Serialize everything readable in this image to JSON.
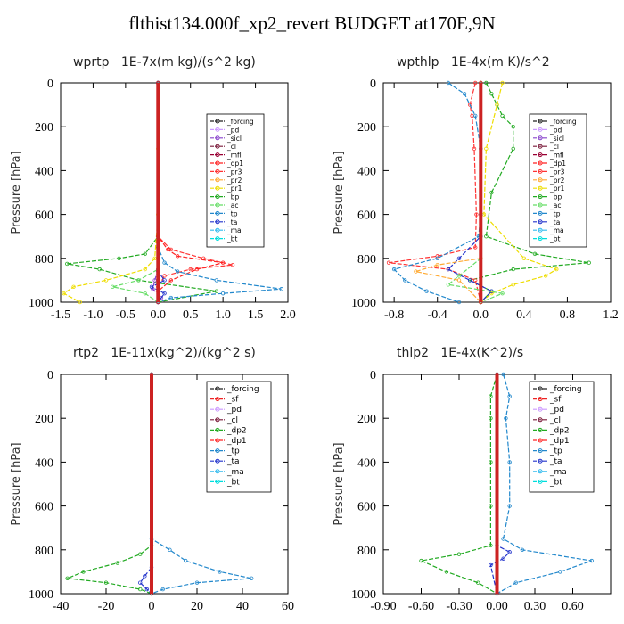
{
  "figure_title": "flthist134.000f_xp2_revert  BUDGET at170E,9N",
  "colors": {
    "_forcing": "#222222",
    "_pd": "#cc99ff",
    "_sicl": "#8844cc",
    "_cl": "#7a1a3a",
    "_mfl": "#990033",
    "_dp1": "#ff2222",
    "_pr3": "#ff3333",
    "_pr2": "#ffaa33",
    "_pr1": "#eedd00",
    "_bp": "#22aa22",
    "_ac": "#66dd66",
    "_tp": "#2288cc",
    "_ta": "#2233cc",
    "_ma": "#33bbee",
    "_bt": "#00dddd",
    "_sf": "#ee2222",
    "_dp2": "#22aa22"
  },
  "chart_data": [
    {
      "type": "line",
      "title": "wprtp   1E-7x(m kg)/(s^2 kg)",
      "ylabel": "Pressure [hPa]",
      "xlim": [
        -1.5,
        2.0
      ],
      "ylim": [
        1000,
        0
      ],
      "xticks": [
        "-1.5",
        "-1.0",
        "-0.5",
        "0.0",
        "0.5",
        "1.0",
        "1.5",
        "2.0"
      ],
      "yticks": [
        "0",
        "200",
        "400",
        "600",
        "800",
        "1000"
      ],
      "legend": [
        "_forcing",
        "_pd",
        "_sicl",
        "_cl",
        "_mfl",
        "_dp1",
        "_pr3",
        "_pr2",
        "_pr1",
        "_bp",
        "_ac",
        "_tp",
        "_ta",
        "_ma",
        "_bt"
      ],
      "legend_position": "top-right",
      "series": [
        {
          "name": "_bp",
          "y": [
            0,
            700,
            780,
            800,
            825,
            850,
            900,
            950,
            1000
          ],
          "x": [
            0,
            0,
            -0.2,
            -0.6,
            -1.4,
            -0.9,
            -0.3,
            0.9,
            0
          ]
        },
        {
          "name": "_pr1",
          "y": [
            0,
            300,
            600,
            800,
            850,
            900,
            930,
            960,
            1000
          ],
          "x": [
            0,
            0,
            0,
            -0.05,
            -0.2,
            -0.8,
            -1.3,
            -1.45,
            -1.2
          ]
        },
        {
          "name": "_pr3",
          "y": [
            0,
            700,
            760,
            800,
            830,
            850,
            880,
            930,
            1000
          ],
          "x": [
            0,
            0,
            0.2,
            0.7,
            1.15,
            0.5,
            0.1,
            0,
            0
          ]
        },
        {
          "name": "_dp1",
          "y": [
            0,
            700,
            760,
            790,
            820,
            850,
            900,
            950,
            1000
          ],
          "x": [
            0,
            0,
            0.15,
            0.3,
            1.0,
            0.6,
            0.2,
            0,
            0
          ]
        },
        {
          "name": "_tp",
          "y": [
            0,
            750,
            820,
            860,
            900,
            940,
            960,
            980,
            1000
          ],
          "x": [
            0,
            0,
            0.1,
            0.3,
            0.9,
            1.9,
            1.0,
            0.2,
            0
          ]
        },
        {
          "name": "_ac",
          "y": [
            0,
            850,
            900,
            930,
            960,
            1000
          ],
          "x": [
            0,
            0,
            -0.3,
            -0.7,
            -0.2,
            0
          ]
        },
        {
          "name": "_sicl",
          "y": [
            0,
            850,
            900,
            940,
            980,
            1000
          ],
          "x": [
            0,
            0,
            -0.05,
            -0.08,
            0.05,
            0
          ]
        },
        {
          "name": "_ta",
          "y": [
            0,
            860,
            900,
            930,
            960,
            1000
          ],
          "x": [
            0,
            0,
            0.1,
            -0.1,
            0.1,
            0
          ]
        },
        {
          "name": "_forcing",
          "y": [
            0,
            1000
          ],
          "x": [
            0,
            0
          ]
        }
      ]
    },
    {
      "type": "line",
      "title": "wpthlp   1E-4x(m K)/s^2",
      "ylabel": "Pressure [hPa]",
      "xlim": [
        -0.9,
        1.2
      ],
      "ylim": [
        1000,
        0
      ],
      "xticks": [
        "-0.8",
        "-0.4",
        "0.0",
        "0.4",
        "0.8",
        "1.2"
      ],
      "yticks": [
        "0",
        "200",
        "400",
        "600",
        "800",
        "1000"
      ],
      "legend": [
        "_forcing",
        "_pd",
        "_sicl",
        "_cl",
        "_mfl",
        "_dp1",
        "_pr3",
        "_pr2",
        "_pr1",
        "_bp",
        "_ac",
        "_tp",
        "_ta",
        "_ma",
        "_bt"
      ],
      "legend_position": "top-right",
      "series": [
        {
          "name": "_bp",
          "y": [
            0,
            50,
            100,
            150,
            200,
            300,
            500,
            700,
            780,
            820,
            850,
            900,
            950,
            1000
          ],
          "x": [
            0.05,
            0.1,
            0.15,
            0.2,
            0.3,
            0.3,
            0.1,
            0.05,
            0.5,
            1.0,
            0.3,
            -0.1,
            0.1,
            0
          ]
        },
        {
          "name": "_pr1",
          "y": [
            0,
            100,
            300,
            600,
            800,
            850,
            880,
            920,
            960,
            1000
          ],
          "x": [
            0.2,
            0.15,
            0.05,
            0.03,
            0.4,
            0.7,
            0.6,
            0.3,
            0.1,
            0
          ]
        },
        {
          "name": "_pr3",
          "y": [
            0,
            100,
            150,
            300,
            600,
            750,
            790,
            820,
            850,
            900,
            1000
          ],
          "x": [
            -0.05,
            -0.1,
            -0.08,
            -0.06,
            -0.04,
            -0.05,
            -0.4,
            -0.85,
            -0.3,
            -0.05,
            0
          ]
        },
        {
          "name": "_tp",
          "y": [
            0,
            50,
            150,
            300,
            600,
            700,
            800,
            850,
            900,
            950,
            1000
          ],
          "x": [
            -0.3,
            -0.15,
            -0.05,
            0,
            0,
            -0.02,
            -0.4,
            -0.8,
            -0.7,
            -0.5,
            -0.2
          ]
        },
        {
          "name": "_ta",
          "y": [
            0,
            700,
            800,
            850,
            900,
            950,
            1000
          ],
          "x": [
            0,
            0,
            -0.2,
            -0.3,
            -0.1,
            0.1,
            0
          ]
        },
        {
          "name": "_ac",
          "y": [
            0,
            800,
            880,
            920,
            960,
            1000
          ],
          "x": [
            0,
            0,
            -0.2,
            -0.3,
            0.2,
            0
          ]
        },
        {
          "name": "_pr2",
          "y": [
            0,
            800,
            830,
            860,
            900,
            1000
          ],
          "x": [
            0,
            0,
            -0.4,
            -0.6,
            -0.2,
            0
          ]
        },
        {
          "name": "_pd",
          "y": [
            0,
            1000
          ],
          "x": [
            0,
            0
          ]
        }
      ]
    },
    {
      "type": "line",
      "title": "rtp2   1E-11x(kg^2)/(kg^2 s)",
      "ylabel": "Pressure [hPa]",
      "xlim": [
        -40,
        60
      ],
      "ylim": [
        1000,
        0
      ],
      "xticks": [
        "-40",
        "-20",
        "0",
        "20",
        "40",
        "60"
      ],
      "yticks": [
        "0",
        "200",
        "400",
        "600",
        "800",
        "1000"
      ],
      "legend": [
        "_forcing",
        "_sf",
        "_pd",
        "_cl",
        "_dp2",
        "_dp1",
        "_tp",
        "_ta",
        "_ma",
        "_bt"
      ],
      "legend_position": "top-right",
      "series": [
        {
          "name": "_tp",
          "y": [
            0,
            750,
            800,
            850,
            900,
            930,
            950,
            980,
            1000
          ],
          "x": [
            0,
            0,
            8,
            15,
            30,
            44,
            20,
            5,
            0
          ]
        },
        {
          "name": "_dp2",
          "y": [
            0,
            780,
            820,
            860,
            900,
            930,
            950,
            980,
            1000
          ],
          "x": [
            0,
            0,
            -5,
            -15,
            -30,
            -37,
            -20,
            -5,
            0
          ]
        },
        {
          "name": "_ta",
          "y": [
            0,
            880,
            920,
            950,
            980,
            1000
          ],
          "x": [
            0,
            0,
            -3,
            -5,
            -2,
            0
          ]
        },
        {
          "name": "_forcing",
          "y": [
            0,
            1000
          ],
          "x": [
            0,
            0
          ]
        }
      ]
    },
    {
      "type": "line",
      "title": "thlp2   1E-4x(K^2)/s",
      "ylabel": "Pressure [hPa]",
      "xlim": [
        -0.9,
        0.9
      ],
      "ylim": [
        1000,
        0
      ],
      "xticks": [
        "-0.90",
        "-0.60",
        "-0.30",
        "0.00",
        "0.30",
        "0.60"
      ],
      "yticks": [
        "0",
        "200",
        "400",
        "600",
        "800",
        "1000"
      ],
      "legend": [
        "_forcing",
        "_sf",
        "_pd",
        "_cl",
        "_dp2",
        "_dp1",
        "_tp",
        "_ta",
        "_ma",
        "_bt"
      ],
      "legend_position": "top-right",
      "series": [
        {
          "name": "_tp",
          "y": [
            0,
            100,
            200,
            400,
            600,
            750,
            800,
            850,
            900,
            950,
            1000
          ],
          "x": [
            0.05,
            0.1,
            0.07,
            0.1,
            0.1,
            0.05,
            0.2,
            0.75,
            0.5,
            0.15,
            0
          ]
        },
        {
          "name": "_dp2",
          "y": [
            0,
            100,
            200,
            400,
            600,
            780,
            820,
            850,
            900,
            950,
            1000
          ],
          "x": [
            0,
            -0.05,
            -0.05,
            -0.05,
            -0.05,
            -0.05,
            -0.3,
            -0.6,
            -0.4,
            -0.15,
            0
          ]
        },
        {
          "name": "_ta",
          "y": [
            0,
            780,
            810,
            840,
            870,
            1000
          ],
          "x": [
            0,
            0,
            0.1,
            0.05,
            -0.05,
            0
          ]
        },
        {
          "name": "_forcing",
          "y": [
            0,
            1000
          ],
          "x": [
            0,
            0
          ]
        }
      ]
    }
  ]
}
